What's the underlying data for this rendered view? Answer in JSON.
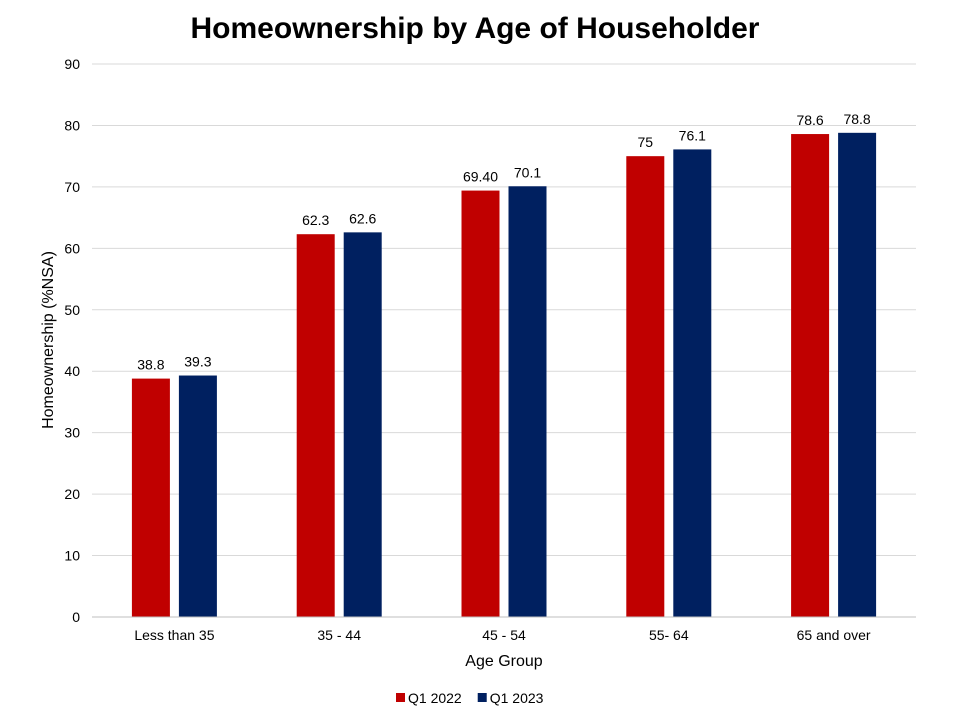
{
  "chart_data": {
    "type": "bar",
    "title": "Homeownership by Age of Householder",
    "xlabel": "Age Group",
    "ylabel": "Homeownership (%NSA)",
    "ylim": [
      0,
      90
    ],
    "yticks": [
      "0",
      "10",
      "20",
      "30",
      "40",
      "50",
      "60",
      "70",
      "80",
      "90"
    ],
    "grid": true,
    "legend_position": "bottom",
    "categories": [
      "Less than 35",
      "35 - 44",
      "45 - 54",
      "55- 64",
      "65 and over"
    ],
    "series": [
      {
        "name": "Q1 2022",
        "color": "#C00000",
        "values": [
          38.8,
          62.3,
          69.4,
          75,
          78.6
        ],
        "labels": [
          "38.8",
          "62.3",
          "69.40",
          "75",
          "78.6"
        ]
      },
      {
        "name": "Q1 2023",
        "color": "#002060",
        "values": [
          39.3,
          62.6,
          70.1,
          76.1,
          78.8
        ],
        "labels": [
          "39.3",
          "62.6",
          "70.1",
          "76.1",
          "78.8"
        ]
      }
    ]
  }
}
